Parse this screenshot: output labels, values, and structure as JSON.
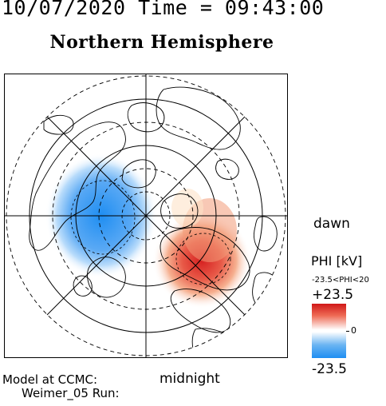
{
  "header": {
    "datetime": "10/07/2020 Time = 09:43:00"
  },
  "title": "Northern Hemisphere",
  "map": {
    "type": "polar-projection",
    "hemisphere": "north",
    "grid": "dashed latitude circles and meridian lines",
    "labels": {
      "dawn": "dawn",
      "midnight": "midnight"
    },
    "potential_pattern": {
      "negative_cell_color": "#1f8ef2",
      "positive_cell_color": "#d01818",
      "negative_cell_side": "left (dusk)",
      "positive_cell_side": "right-lower (dawn)"
    }
  },
  "colorbar": {
    "title": "PHI [kV]",
    "range_text": "-23.5<PHI<20",
    "max_label": "+23.5",
    "mid_label": "0",
    "min_label": "-23.5",
    "colors": [
      "#d01818",
      "#ffffff",
      "#1f8ef2"
    ]
  },
  "footer": {
    "model_label": "Model at CCMC:",
    "run_label": "Weimer_05 Run:"
  }
}
